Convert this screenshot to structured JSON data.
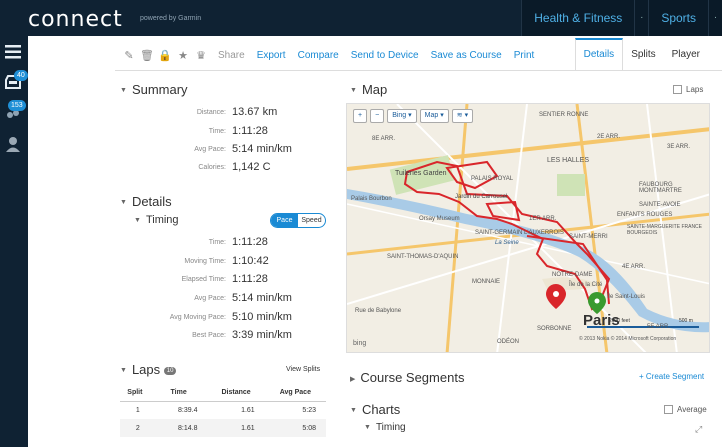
{
  "header": {
    "logo": "connect",
    "logo_sub": "powered by Garmin",
    "nav": [
      {
        "label": "Health & Fitness"
      },
      {
        "label": "Sports"
      }
    ],
    "caret": "·"
  },
  "sidebar": {
    "badges": {
      "inbox": "40",
      "connections": "153"
    }
  },
  "toolbar": {
    "share": "Share",
    "links": [
      "Export",
      "Compare",
      "Send to Device",
      "Save as Course",
      "Print"
    ]
  },
  "tabs": [
    {
      "label": "Details"
    },
    {
      "label": "Splits"
    },
    {
      "label": "Player"
    }
  ],
  "summary": {
    "title": "Summary",
    "rows": [
      {
        "label": "Distance:",
        "value": "13.67 km"
      },
      {
        "label": "Time:",
        "value": "1:11:28"
      },
      {
        "label": "Avg Pace:",
        "value": "5:14 min/km"
      },
      {
        "label": "Calories:",
        "value": "1,142 C"
      }
    ]
  },
  "details": {
    "title": "Details",
    "timing_title": "Timing",
    "toggle": {
      "on": "Pace",
      "off": "Speed"
    },
    "rows": [
      {
        "label": "Time:",
        "value": "1:11:28"
      },
      {
        "label": "Moving Time:",
        "value": "1:10:42"
      },
      {
        "label": "Elapsed Time:",
        "value": "1:11:28"
      },
      {
        "label": "Avg Pace:",
        "value": "5:14 min/km"
      },
      {
        "label": "Avg Moving Pace:",
        "value": "5:10 min/km"
      },
      {
        "label": "Best Pace:",
        "value": "3:39 min/km"
      }
    ]
  },
  "laps": {
    "title": "Laps",
    "count": "10",
    "view_splits": "View Splits",
    "columns": [
      "Split",
      "Time",
      "Distance",
      "Avg Pace"
    ],
    "rows": [
      [
        "1",
        "8:39.4",
        "1.61",
        "5:23"
      ],
      [
        "2",
        "8:14.8",
        "1.61",
        "5:08"
      ]
    ]
  },
  "map": {
    "title": "Map",
    "laps_label": "Laps",
    "controls": {
      "zoom_in": "+",
      "zoom_out": "−",
      "provider": "Bing",
      "type": "Map"
    },
    "labels": [
      "SENTIER RONNE",
      "8E ARR.",
      "2E ARR.",
      "3E ARR.",
      "Tuileries Garden",
      "PALAIS ROYAL",
      "LES HALLES",
      "FAUBOURG MONTMARTRE",
      "Jardin du Carrousel",
      "SAINTE-AVOIE",
      "SAINT-GERMAIN L'AUXERROIS",
      "ENFANTS ROUGES",
      "Palais Bourbon",
      "Orsay Museum",
      "La Seine",
      "1ER ARR.",
      "SAINT-MERRI",
      "SAINTE-MARGUERITE FRANCE BOURGEOIS",
      "SAINT-THOMAS-D'AQUIN",
      "4E ARR.",
      "MONNAIE",
      "NOTRE-DAME",
      "Rue de Babylone",
      "Île de la Cité",
      "Île Saint-Louis",
      "SORBONNE",
      "ODÉON",
      "5E ARR.",
      "Paris",
      "bing"
    ],
    "scale": "2000 feet",
    "scale_km": "500 m",
    "copyright": "© 2013 Nokia   © 2014 Microsoft Corporation"
  },
  "course_segments": {
    "title": "Course Segments",
    "create": "+ Create Segment"
  },
  "charts": {
    "title": "Charts",
    "average_label": "Average",
    "timing_title": "Timing"
  },
  "colors": {
    "accent": "#1a8ad4",
    "nav_bg": "#0f2233",
    "route": "#d9262b"
  }
}
